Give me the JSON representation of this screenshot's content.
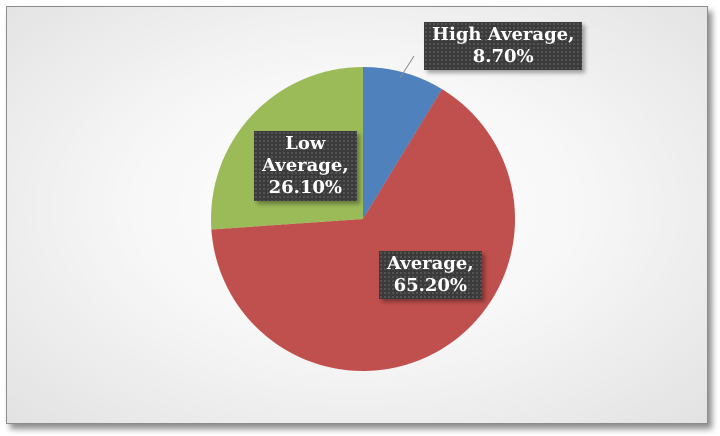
{
  "chart_data": {
    "type": "pie",
    "title": "",
    "slices": [
      {
        "label": "High Average",
        "value": 8.7,
        "display": "8.70%",
        "color": "#4f81bd"
      },
      {
        "label": "Average",
        "value": 65.2,
        "display": "65.20%",
        "color": "#c0504d"
      },
      {
        "label": "Low Average",
        "value": 26.1,
        "display": "26.10%",
        "color": "#9bbb59"
      }
    ],
    "start_angle_deg": 0,
    "direction": "clockwise",
    "data_labels": [
      {
        "lines": [
          "High Average,",
          "8.70%"
        ]
      },
      {
        "lines": [
          "Average,",
          "65.20%"
        ]
      },
      {
        "lines": [
          "Low",
          "Average,",
          "26.10%"
        ]
      }
    ],
    "legend": "none"
  }
}
